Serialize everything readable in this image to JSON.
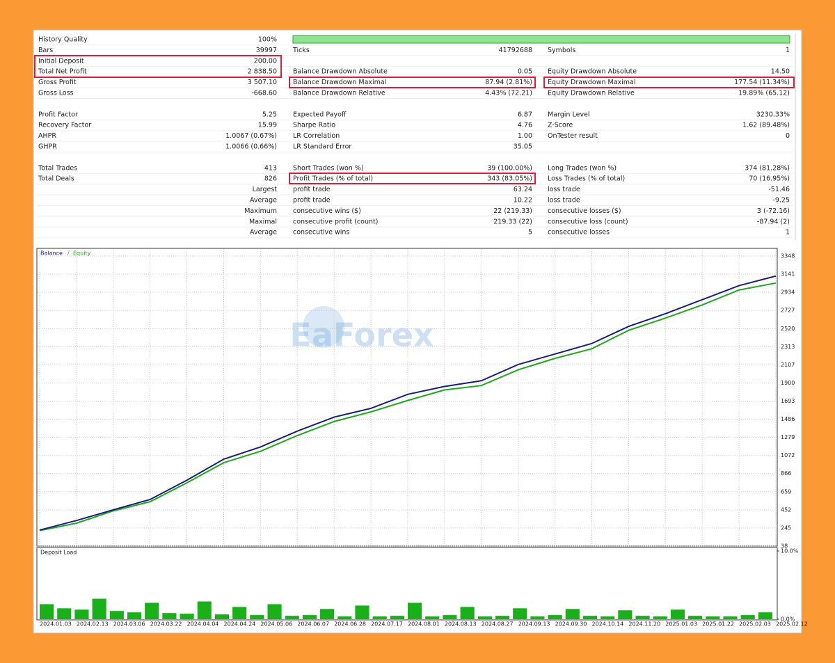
{
  "report": {
    "history_bar": "100%",
    "sections": [
      [
        [
          "History Quality",
          "100%",
          null,
          null,
          null,
          null
        ],
        [
          "Bars",
          "39997",
          "Ticks",
          "41792688",
          "Symbols",
          "1"
        ],
        [
          "Initial Deposit",
          "200.00",
          null,
          null,
          null,
          null
        ],
        [
          "Total Net Profit",
          "2 838.50",
          "Balance Drawdown Absolute",
          "0.05",
          "Equity Drawdown Absolute",
          "14.50"
        ],
        [
          "Gross Profit",
          "3 507.10",
          "Balance Drawdown Maximal",
          "87.94 (2.81%)",
          "Equity Drawdown Maximal",
          "177.54 (11.34%)"
        ],
        [
          "Gross Loss",
          "-668.60",
          "Balance Drawdown Relative",
          "4.43% (72.21)",
          "Equity Drawdown Relative",
          "19.89% (65.12)"
        ]
      ],
      [
        [
          "Profit Factor",
          "5.25",
          "Expected Payoff",
          "6.87",
          "Margin Level",
          "3230.33%"
        ],
        [
          "Recovery Factor",
          "15.99",
          "Sharpe Ratio",
          "4.76",
          "Z-Score",
          "1.62 (89.48%)"
        ],
        [
          "AHPR",
          "1.0067 (0.67%)",
          "LR Correlation",
          "1.00",
          "OnTester result",
          "0"
        ],
        [
          "GHPR",
          "1.0066 (0.66%)",
          "LR Standard Error",
          "35.05",
          null,
          null
        ]
      ],
      [
        [
          "Total Trades",
          "413",
          "Short Trades (won %)",
          "39 (100.00%)",
          "Long Trades (won %)",
          "374 (81.28%)"
        ],
        [
          "Total Deals",
          "826",
          "Profit Trades (% of total)",
          "343 (83.05%)",
          "Loss Trades (% of total)",
          "70 (16.95%)"
        ],
        [
          null,
          "Largest",
          "profit trade",
          "63.24",
          "loss trade",
          "-51.46"
        ],
        [
          null,
          "Average",
          "profit trade",
          "10.22",
          "loss trade",
          "-9.25"
        ],
        [
          null,
          "Maximum",
          "consecutive wins ($)",
          "22 (219.33)",
          "consecutive losses ($)",
          "3 (-72.16)"
        ],
        [
          null,
          "Maximal",
          "consecutive profit (count)",
          "219.33 (22)",
          "consecutive loss (count)",
          "-87.94 (2)"
        ],
        [
          null,
          "Average",
          "consecutive wins",
          "5",
          "consecutive losses",
          "1"
        ]
      ]
    ]
  },
  "watermark": "EaForex",
  "chart_data": [
    {
      "type": "line",
      "legend_separator": "/",
      "categories": [
        "2024.01.03",
        "2024.02.13",
        "2024.03.06",
        "2024.03.22",
        "2024.04.04",
        "2024.04.24",
        "2024.05.06",
        "2024.06.07",
        "2024.06.28",
        "2024.07.17",
        "2024.08.01",
        "2024.08.13",
        "2024.08.27",
        "2024.09.13",
        "2024.09.30",
        "2024.10.14",
        "2024.11.20",
        "2025.01.03",
        "2025.01.22",
        "2025.02.03",
        "2025.02.12"
      ],
      "series": [
        {
          "name": "Balance",
          "color": "#1a1f7a",
          "values": [
            221,
            330,
            452,
            570,
            790,
            1030,
            1170,
            1350,
            1510,
            1610,
            1770,
            1860,
            1925,
            2110,
            2230,
            2350,
            2545,
            2690,
            2850,
            3010,
            3120
          ]
        },
        {
          "name": "Equity",
          "color": "#1fa81f",
          "values": [
            215,
            300,
            440,
            545,
            760,
            990,
            1120,
            1300,
            1460,
            1570,
            1700,
            1820,
            1870,
            2050,
            2180,
            2290,
            2500,
            2640,
            2790,
            2960,
            3040
          ]
        }
      ],
      "ylim": [
        38,
        3348
      ],
      "yticks": [
        3348,
        3141,
        2934,
        2727,
        2520,
        2313,
        2107,
        1900,
        1693,
        1486,
        1279,
        1072,
        866,
        659,
        452,
        245,
        38
      ],
      "grid": true
    },
    {
      "type": "bar",
      "title": "Deposit Load",
      "color": "#19b019",
      "values": [
        2.2,
        1.6,
        1.4,
        3.0,
        1.2,
        1.0,
        2.4,
        0.9,
        0.8,
        2.6,
        0.7,
        1.8,
        0.6,
        2.2,
        0.5,
        0.6,
        1.5,
        0.4,
        2.0,
        0.4,
        0.5,
        2.4,
        0.4,
        0.6,
        1.8,
        0.4,
        0.5,
        1.6,
        0.4,
        0.6,
        1.5,
        0.5,
        0.4,
        1.3,
        0.5,
        0.4,
        1.4,
        0.5,
        0.4,
        0.4,
        0.6,
        1.0
      ],
      "ylim": [
        0,
        10
      ],
      "yticks": [
        {
          "value": 10,
          "label": "10.0%"
        },
        {
          "value": 0,
          "label": "0.0%"
        }
      ]
    }
  ]
}
